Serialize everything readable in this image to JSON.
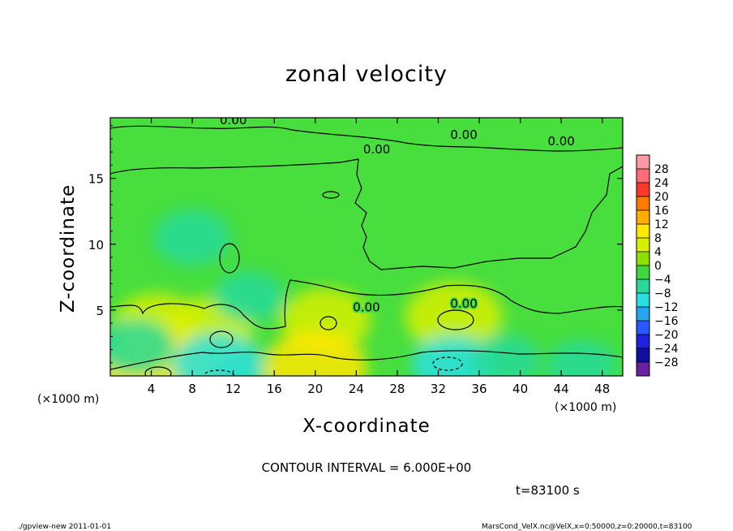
{
  "figure": {
    "footer_left": "./gpview-new   2011-01-01",
    "footer_right": "MarsCond_VelX.nc@VelX,x=0:50000,z=0:20000,t=83100",
    "contour_interval": "CONTOUR INTERVAL = 6.000E+00",
    "time_label": "t=83100 s"
  },
  "chart_data": {
    "type": "heatmap",
    "title": "zonal velocity",
    "xlabel": "X-coordinate",
    "ylabel": "Z-coordinate",
    "x_unit_left": "(×1000 m)",
    "x_unit_right": "(×1000 m)",
    "xlim": [
      0,
      50
    ],
    "ylim": [
      0,
      19.6
    ],
    "x_ticks": [
      4,
      8,
      12,
      16,
      20,
      24,
      28,
      32,
      36,
      40,
      44,
      48
    ],
    "y_ticks": [
      5,
      10,
      15
    ],
    "contour_labels": [
      {
        "text": "0.00",
        "x": 12,
        "z": 19.4
      },
      {
        "text": "0.00",
        "x": 34.5,
        "z": 18.3
      },
      {
        "text": "0.00",
        "x": 44,
        "z": 17.8
      },
      {
        "text": "0.00",
        "x": 26,
        "z": 17.2
      },
      {
        "text": "0.00",
        "x": 25,
        "z": 5.2
      },
      {
        "text": "0.00",
        "x": 34.5,
        "z": 5.5
      }
    ],
    "colorbar": {
      "labels": [
        "28",
        "24",
        "20",
        "16",
        "12",
        "8",
        "4",
        "0",
        "−4",
        "−8",
        "−12",
        "−16",
        "−20",
        "−24",
        "−28"
      ],
      "colors": [
        "#ff9aa4",
        "#ff6b76",
        "#ff3a2a",
        "#ff7a00",
        "#ffae00",
        "#ffe800",
        "#d8f000",
        "#8ee000",
        "#3fd63f",
        "#27da9a",
        "#28e0e0",
        "#27a4ee",
        "#2858ff",
        "#2020e0",
        "#1010a0",
        "#6a20a0"
      ]
    },
    "velocity_blobs": [
      {
        "x": 4.5,
        "z": 4.0,
        "value": 5
      },
      {
        "x": 9.5,
        "z": 3.5,
        "value": 6
      },
      {
        "x": 21.0,
        "z": 4.2,
        "value": 6
      },
      {
        "x": 33.5,
        "z": 4.5,
        "value": 7
      },
      {
        "x": 4.5,
        "z": 0.3,
        "value": 9
      },
      {
        "x": 20.0,
        "z": 0.6,
        "value": 8
      },
      {
        "x": 8.0,
        "z": 10.5,
        "value": -4
      },
      {
        "x": 13.5,
        "z": 6.0,
        "value": -3
      },
      {
        "x": 2.5,
        "z": 2.2,
        "value": -4
      },
      {
        "x": 10.5,
        "z": 0.8,
        "value": -6
      },
      {
        "x": 33.5,
        "z": 0.8,
        "value": -5
      },
      {
        "x": 38.5,
        "z": 1.2,
        "value": -3
      },
      {
        "x": 46.0,
        "z": 0.8,
        "value": -3
      }
    ]
  }
}
